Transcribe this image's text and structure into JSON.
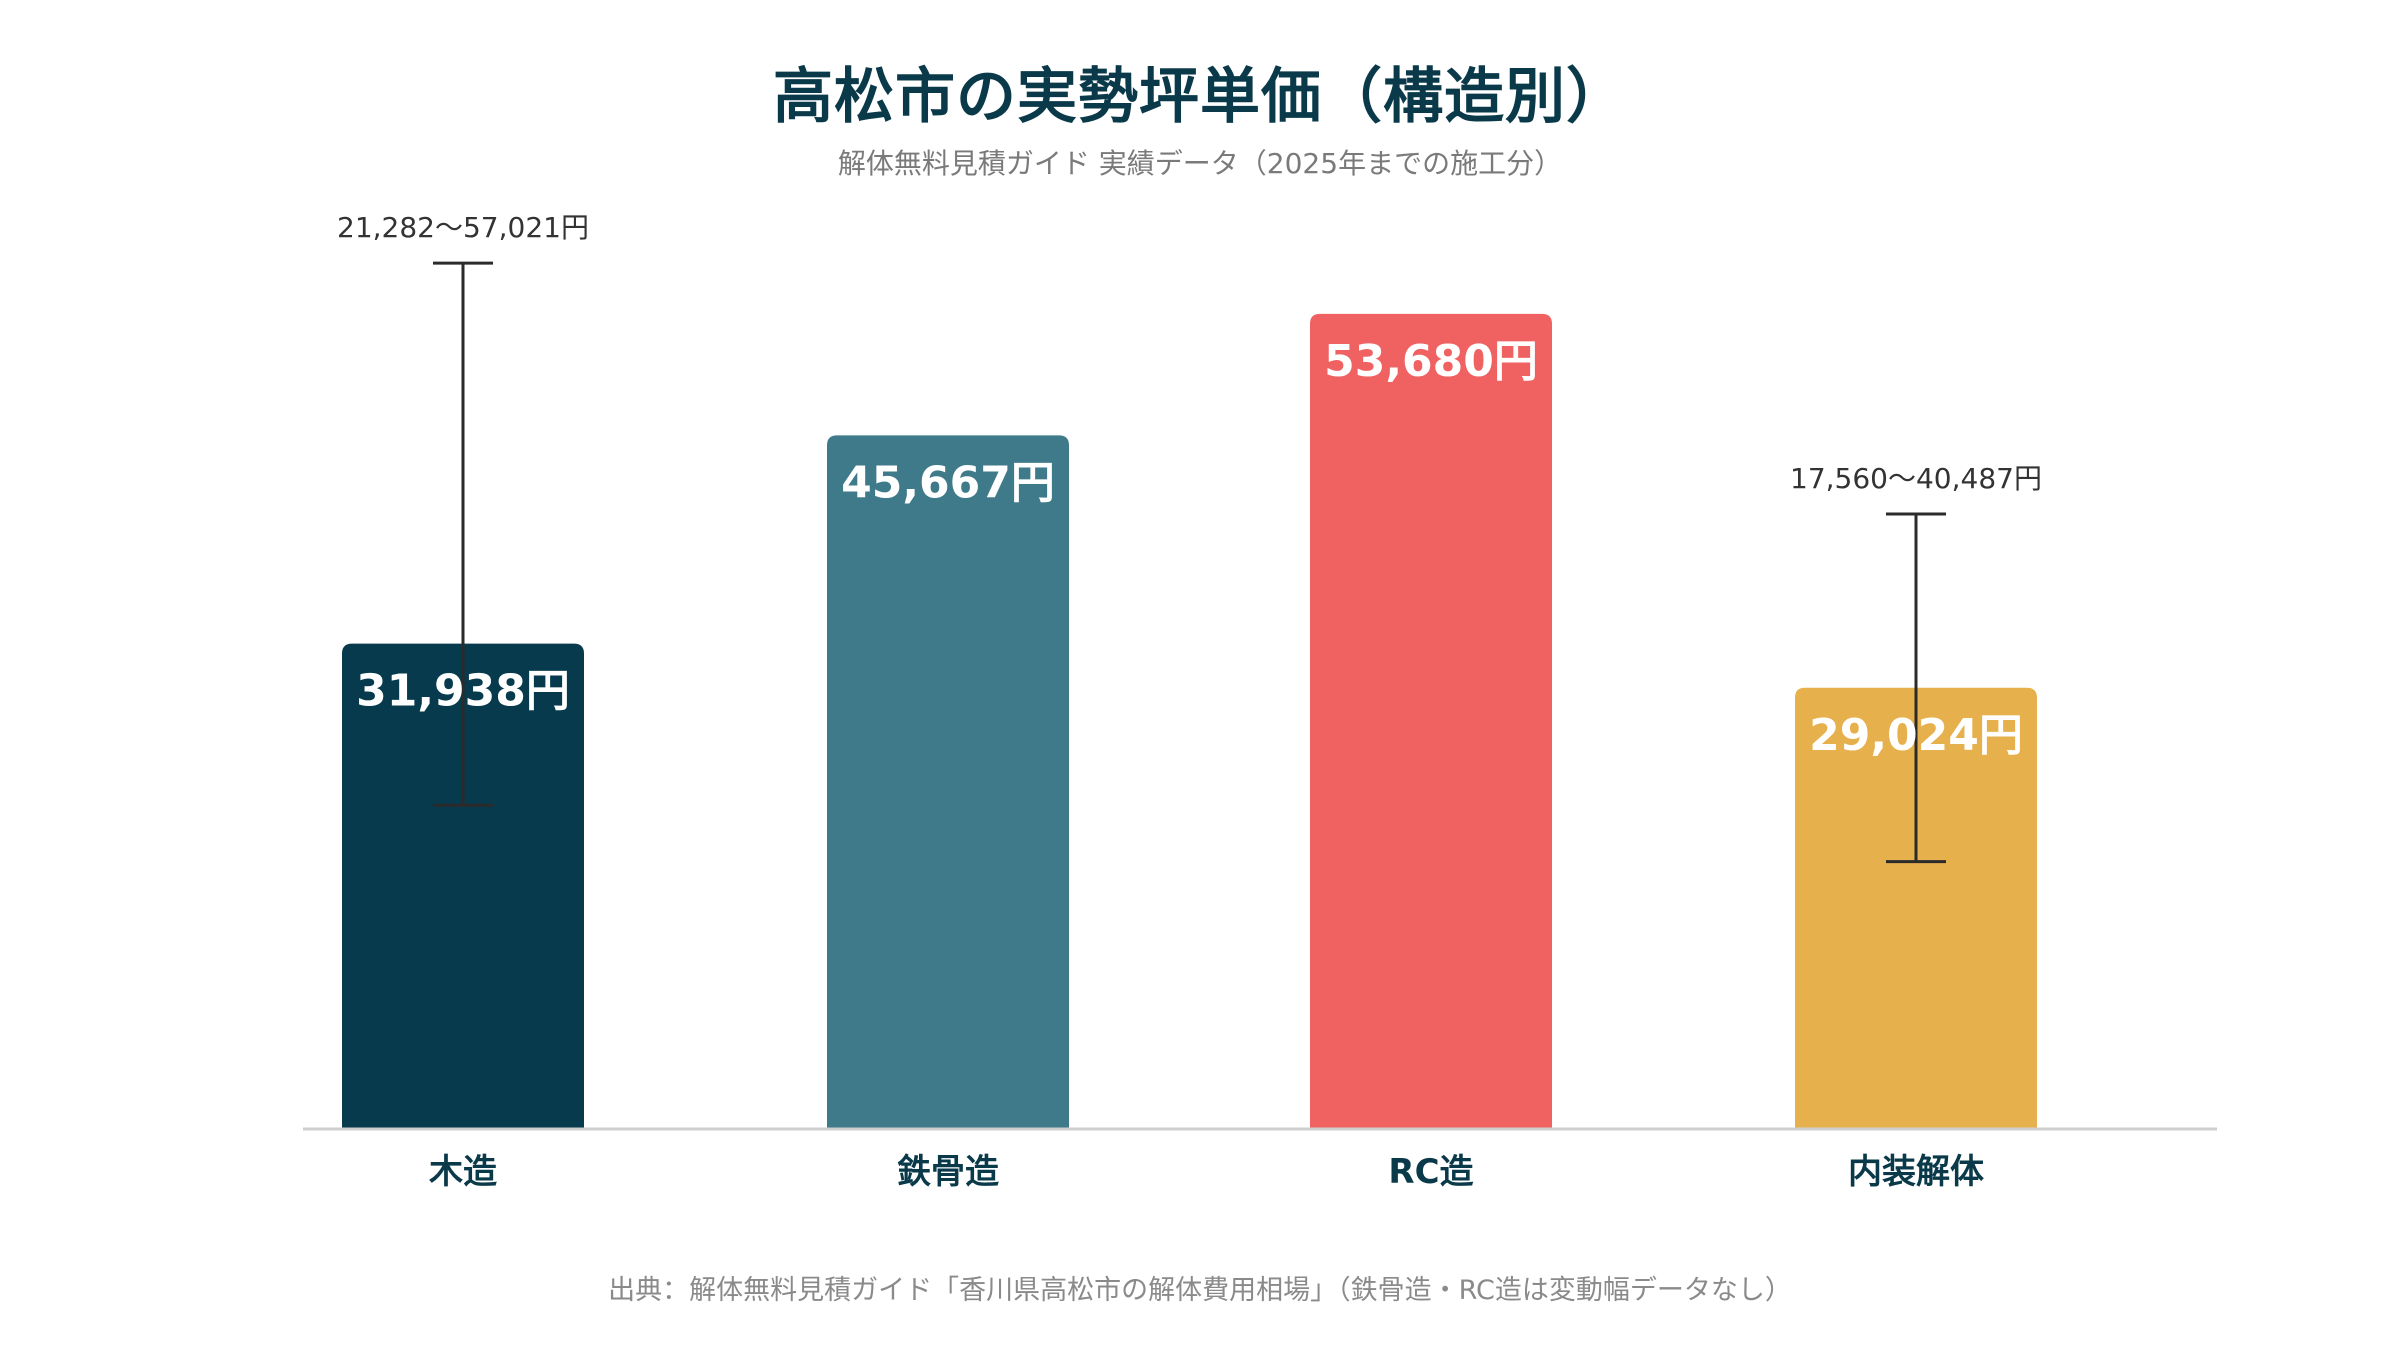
{
  "header": {
    "title": "高松市の実勢坪単価（構造別）",
    "subtitle": "解体無料見積ガイド 実績データ（2025年までの施工分）"
  },
  "footer": {
    "source": "出典：解体無料見積ガイド「香川県高松市の解体費用相場」（鉄骨造・RC造は変動幅データなし）"
  },
  "chart_data": {
    "type": "bar",
    "title": "高松市の実勢坪単価（構造別）",
    "subtitle": "解体無料見積ガイド 実績データ（2025年までの施工分）",
    "categories": [
      "木造",
      "鉄骨造",
      "RC造",
      "内装解体"
    ],
    "values": [
      31938,
      45667,
      53680,
      29024
    ],
    "value_labels": [
      "31,938円",
      "45,667円",
      "53,680円",
      "29,024円"
    ],
    "colors": [
      "#063a4c",
      "#3f7a8a",
      "#f06262",
      "#e6b04c"
    ],
    "ranges": [
      {
        "category": "木造",
        "min": 21282,
        "max": 57021,
        "label": "21,282〜57,021円"
      },
      null,
      null,
      {
        "category": "内装解体",
        "min": 17560,
        "max": 40487,
        "label": "17,560〜40,487円"
      }
    ],
    "ylim": [
      0,
      60000
    ],
    "grid": false,
    "legend": "none",
    "xlabel": "",
    "ylabel": ""
  }
}
